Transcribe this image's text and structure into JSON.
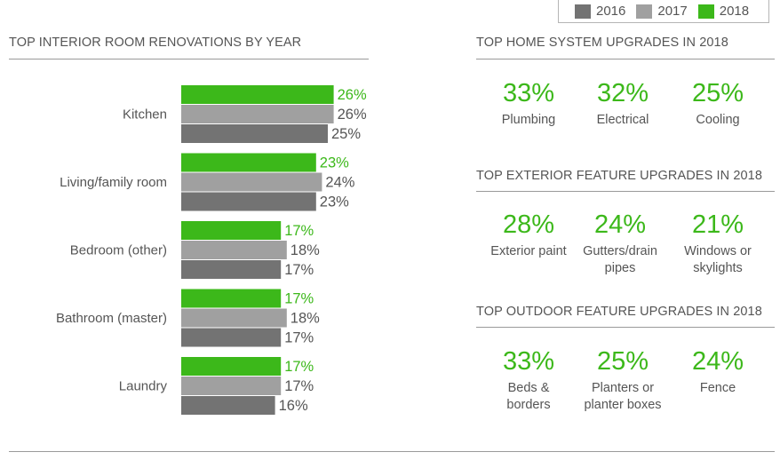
{
  "legend": [
    {
      "label": "2016",
      "color": "#737373"
    },
    {
      "label": "2017",
      "color": "#a0a0a0"
    },
    {
      "label": "2018",
      "color": "#3cb81a"
    }
  ],
  "interior_title": "TOP INTERIOR ROOM RENOVATIONS BY YEAR",
  "chart_data": {
    "type": "bar",
    "orientation": "horizontal",
    "title": "TOP INTERIOR ROOM RENOVATIONS BY YEAR",
    "categories": [
      "Kitchen",
      "Living/family room",
      "Bedroom (other)",
      "Bathroom (master)",
      "Laundry"
    ],
    "series": [
      {
        "name": "2018",
        "color": "#3cb81a",
        "values": [
          26,
          23,
          17,
          17,
          17
        ],
        "labels": [
          "26%",
          "23%",
          "17%",
          "17%",
          "17%"
        ]
      },
      {
        "name": "2017",
        "color": "#a0a0a0",
        "values": [
          26,
          24,
          18,
          18,
          17
        ],
        "labels": [
          "26%",
          "24%",
          "18%",
          "18%",
          "17%"
        ]
      },
      {
        "name": "2016",
        "color": "#737373",
        "values": [
          25,
          23,
          17,
          17,
          16
        ],
        "labels": [
          "25%",
          "23%",
          "17%",
          "17%",
          "16%"
        ]
      }
    ],
    "label_color_2018": "#3cb81a",
    "label_color_other": "#555555",
    "legend_position": "top-right",
    "grid": false
  },
  "system": {
    "title": "TOP HOME SYSTEM UPGRADES IN 2018",
    "items": [
      {
        "value": "33%",
        "label": "Plumbing"
      },
      {
        "value": "32%",
        "label": "Electrical"
      },
      {
        "value": "25%",
        "label": "Cooling"
      }
    ]
  },
  "exterior": {
    "title": "TOP EXTERIOR FEATURE UPGRADES IN 2018",
    "items": [
      {
        "value": "28%",
        "label": "Exterior paint"
      },
      {
        "value": "24%",
        "label": "Gutters/drain pipes"
      },
      {
        "value": "21%",
        "label": "Windows or skylights"
      }
    ]
  },
  "outdoor": {
    "title": "TOP OUTDOOR FEATURE UPGRADES IN 2018",
    "items": [
      {
        "value": "33%",
        "label": "Beds & borders"
      },
      {
        "value": "25%",
        "label": "Planters or planter boxes"
      },
      {
        "value": "24%",
        "label": "Fence"
      }
    ]
  }
}
